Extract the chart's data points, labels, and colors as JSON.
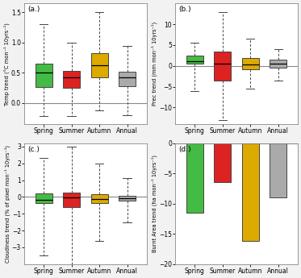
{
  "colors": [
    "#44bb44",
    "#dd2222",
    "#ddaa00",
    "#aaaaaa"
  ],
  "seasons": [
    "Spring",
    "Summer",
    "Autumn",
    "Annual"
  ],
  "bg_color": "#f2f2f2",
  "panel_bg": "#ffffff",
  "temp": {
    "whislo": [
      -0.22,
      -0.22,
      -0.12,
      -0.2
    ],
    "q1": [
      0.27,
      0.25,
      0.43,
      0.28
    ],
    "med": [
      0.5,
      0.43,
      0.62,
      0.43
    ],
    "q3": [
      0.65,
      0.53,
      0.83,
      0.52
    ],
    "whishi": [
      1.3,
      1.0,
      1.5,
      0.95
    ],
    "ylim": [
      -0.35,
      1.65
    ],
    "yticks": [
      0.0,
      0.5,
      1.0,
      1.5
    ],
    "ylabel": "Temp trend (°C mon⁻¹ 10yrs⁻¹)",
    "hline": 0.0,
    "label": "(a.)"
  },
  "prec": {
    "whislo": [
      -6.0,
      -13.0,
      -5.5,
      -3.5
    ],
    "q1": [
      0.5,
      -3.5,
      -0.8,
      -0.5
    ],
    "med": [
      1.2,
      0.5,
      0.3,
      0.5
    ],
    "q3": [
      2.5,
      3.5,
      1.8,
      1.5
    ],
    "whishi": [
      5.5,
      13.0,
      6.5,
      4.0
    ],
    "ylim": [
      -14,
      15
    ],
    "yticks": [
      -10,
      -5,
      0,
      5,
      10
    ],
    "ylabel": "Prec trend (mm mon⁻¹ 10yrs⁻¹)",
    "hline": 0.0,
    "label": "(b.)"
  },
  "cloud": {
    "whislo": [
      -3.5,
      -4.5,
      -2.6,
      -1.5
    ],
    "q1": [
      -0.35,
      -0.6,
      -0.35,
      -0.22
    ],
    "med": [
      -0.18,
      -0.05,
      -0.12,
      -0.1
    ],
    "q3": [
      0.22,
      0.28,
      0.15,
      0.08
    ],
    "whishi": [
      2.3,
      3.0,
      2.0,
      1.1
    ],
    "ylim": [
      -4.0,
      3.2
    ],
    "yticks": [
      -3,
      -2,
      -1,
      0,
      1,
      2,
      3
    ],
    "ylabel": "Cloudiness trend (% of pixel mon⁻¹ 10yrs⁻¹)",
    "hline": 0.0,
    "label": "(c.)"
  },
  "burnt": {
    "values": [
      -11.5,
      -6.5,
      -16.2,
      -9.0
    ],
    "ylim": [
      -20,
      0
    ],
    "yticks": [
      -20,
      -15,
      -10,
      -5,
      0
    ],
    "ylabel": "Burnt Area trend (ha mon⁻¹ 10yrs⁻¹)",
    "label": "(d.)"
  }
}
